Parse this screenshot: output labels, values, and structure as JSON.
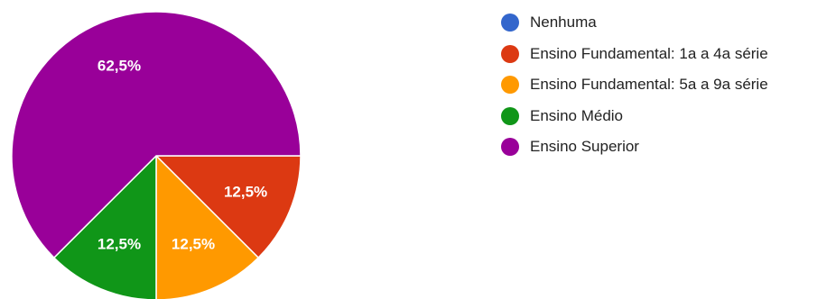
{
  "chart_data": {
    "type": "pie",
    "categories": [
      "Nenhuma",
      "Ensino Fundamental: 1a a 4a série",
      "Ensino Fundamental: 5a a 9a série",
      "Ensino Médio",
      "Ensino Superior"
    ],
    "values": [
      0,
      12.5,
      12.5,
      12.5,
      62.5
    ],
    "labels": [
      "",
      "12,5%",
      "12,5%",
      "12,5%",
      "62,5%"
    ],
    "colors": [
      "#3366cc",
      "#dc3912",
      "#ff9900",
      "#109618",
      "#990099"
    ],
    "start_angle": "3 o'clock",
    "direction": "clockwise",
    "legend_position": "right"
  }
}
